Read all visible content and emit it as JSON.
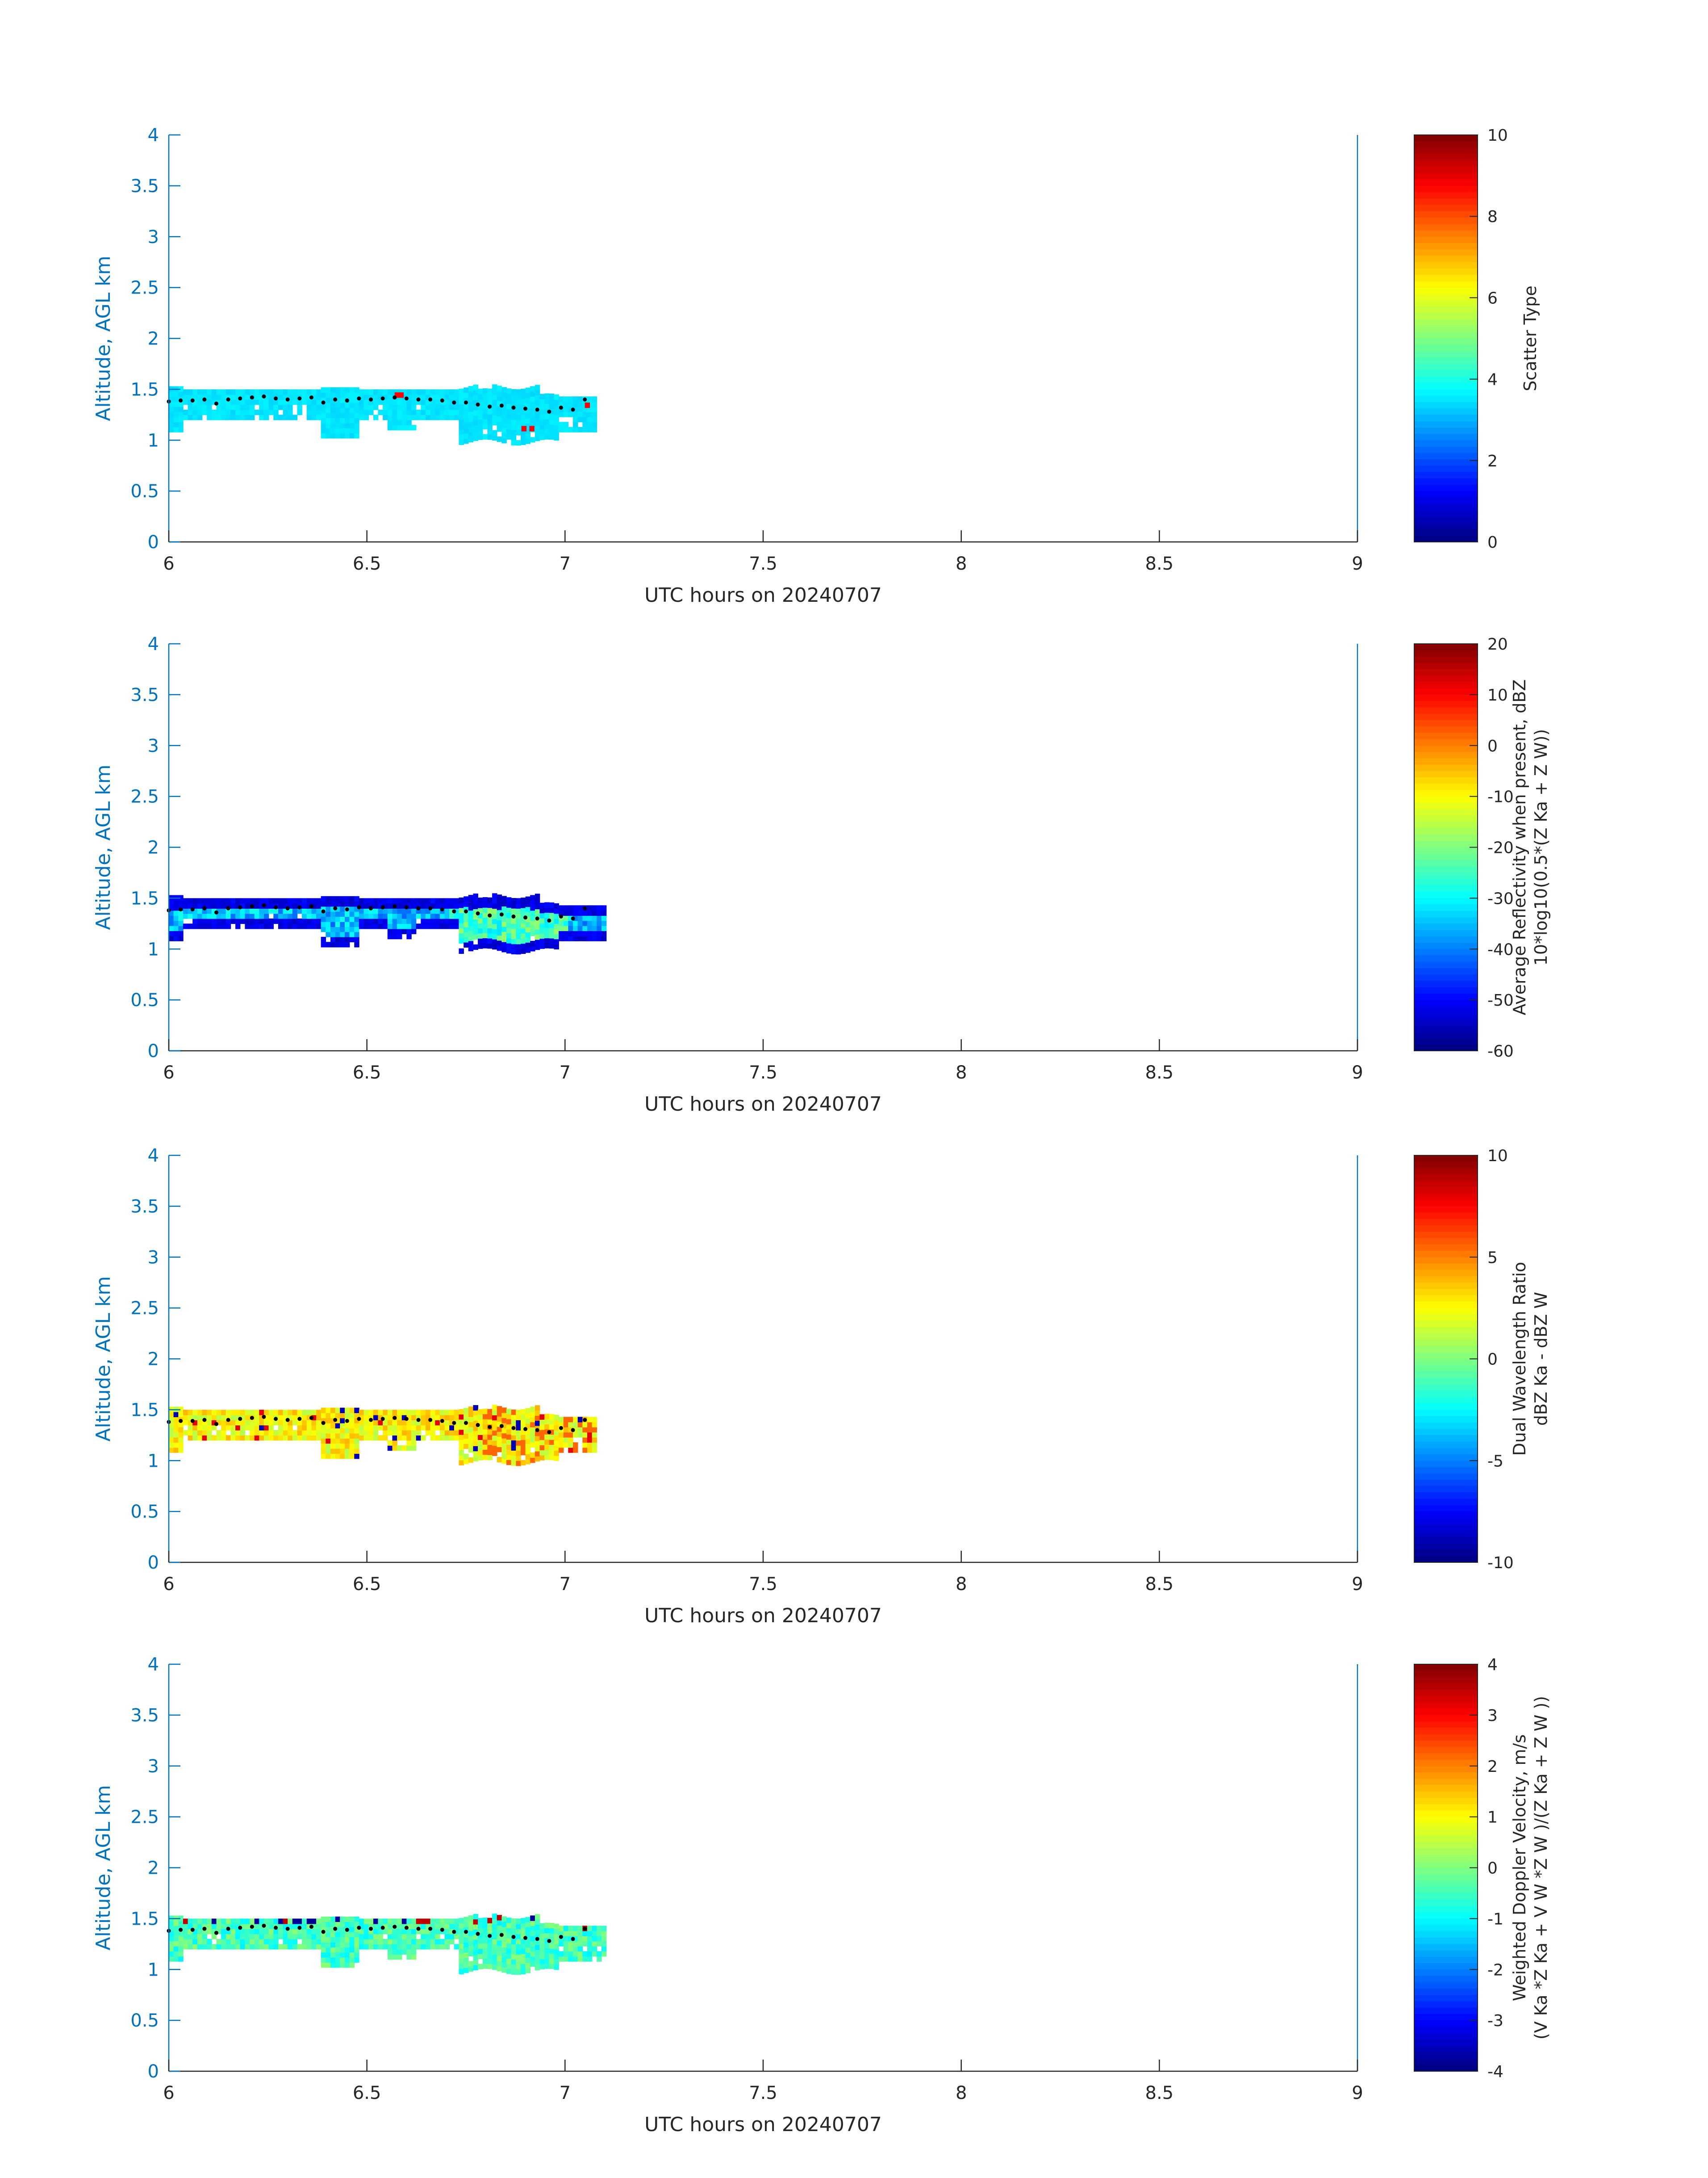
{
  "chart_data": [
    {
      "type": "heatmap",
      "xlabel": "UTC hours on 20240707",
      "ylabel": "Altitude, AGL km",
      "xlim": [
        6,
        9
      ],
      "ylim": [
        0,
        4
      ],
      "xticks": [
        6,
        6.5,
        7,
        7.5,
        8,
        8.5,
        9
      ],
      "xtick_labels": [
        "6",
        "6.5",
        "7",
        "7.5",
        "8",
        "8.5",
        "9"
      ],
      "yticks": [
        0,
        0.5,
        1,
        1.5,
        2,
        2.5,
        3,
        3.5,
        4
      ],
      "ytick_labels": [
        "0",
        "0.5",
        "1",
        "1.5",
        "2",
        "2.5",
        "3",
        "3.5",
        "4"
      ],
      "colorbar": {
        "label_lines": [
          "Scatter Type"
        ],
        "range": [
          0,
          10
        ],
        "ticks": [
          0,
          2,
          4,
          6,
          8,
          10
        ],
        "tick_labels": [
          "0",
          "2",
          "4",
          "6",
          "8",
          "10"
        ]
      },
      "time_extent": [
        6.0,
        7.07
      ],
      "typical_value": 3.5,
      "highlight_value": 8.8,
      "highlight_cells": [
        [
          6.57,
          1.42
        ],
        [
          6.58,
          1.42
        ],
        [
          6.89,
          1.09
        ],
        [
          6.91,
          1.09
        ],
        [
          7.05,
          1.32
        ]
      ]
    },
    {
      "type": "heatmap",
      "xlabel": "UTC hours on 20240707",
      "ylabel": "Altitude, AGL km",
      "xlim": [
        6,
        9
      ],
      "ylim": [
        0,
        4
      ],
      "xticks": [
        6,
        6.5,
        7,
        7.5,
        8,
        8.5,
        9
      ],
      "xtick_labels": [
        "6",
        "6.5",
        "7",
        "7.5",
        "8",
        "8.5",
        "9"
      ],
      "yticks": [
        0,
        0.5,
        1,
        1.5,
        2,
        2.5,
        3,
        3.5,
        4
      ],
      "ytick_labels": [
        "0",
        "0.5",
        "1",
        "1.5",
        "2",
        "2.5",
        "3",
        "3.5",
        "4"
      ],
      "colorbar": {
        "label_lines": [
          "Average Reflectivity when present, dBZ",
          "10*log10(0.5*(Z Ka + Z W))"
        ],
        "range": [
          -60,
          20
        ],
        "ticks": [
          -60,
          -50,
          -40,
          -30,
          -20,
          -10,
          0,
          10,
          20
        ],
        "tick_labels": [
          "-60",
          "-50",
          "-40",
          "-30",
          "-20",
          "-10",
          "0",
          "10",
          "20"
        ]
      },
      "time_extent": [
        6.0,
        7.1
      ],
      "typical_value": -35,
      "edge_value": -55
    },
    {
      "type": "heatmap",
      "xlabel": "UTC hours on 20240707",
      "ylabel": "Altitude, AGL km",
      "xlim": [
        6,
        9
      ],
      "ylim": [
        0,
        4
      ],
      "xticks": [
        6,
        6.5,
        7,
        7.5,
        8,
        8.5,
        9
      ],
      "xtick_labels": [
        "6",
        "6.5",
        "7",
        "7.5",
        "8",
        "8.5",
        "9"
      ],
      "yticks": [
        0,
        0.5,
        1,
        1.5,
        2,
        2.5,
        3,
        3.5,
        4
      ],
      "ytick_labels": [
        "0",
        "0.5",
        "1",
        "1.5",
        "2",
        "2.5",
        "3",
        "3.5",
        "4"
      ],
      "colorbar": {
        "label_lines": [
          "Dual Wavelength Ratio",
          "dBZ Ka - dBZ W"
        ],
        "range": [
          -10,
          10
        ],
        "ticks": [
          -10,
          -5,
          0,
          5,
          10
        ],
        "tick_labels": [
          "-10",
          "-5",
          "0",
          "5",
          "10"
        ]
      },
      "time_extent": [
        6.0,
        7.07
      ],
      "typical_value": 2.5
    },
    {
      "type": "heatmap",
      "xlabel": "UTC hours on 20240707",
      "ylabel": "Altitude, AGL km",
      "xlim": [
        6,
        9
      ],
      "ylim": [
        0,
        4
      ],
      "xticks": [
        6,
        6.5,
        7,
        7.5,
        8,
        8.5,
        9
      ],
      "xtick_labels": [
        "6",
        "6.5",
        "7",
        "7.5",
        "8",
        "8.5",
        "9"
      ],
      "yticks": [
        0,
        0.5,
        1,
        1.5,
        2,
        2.5,
        3,
        3.5,
        4
      ],
      "ytick_labels": [
        "0",
        "0.5",
        "1",
        "1.5",
        "2",
        "2.5",
        "3",
        "3.5",
        "4"
      ],
      "colorbar": {
        "label_lines": [
          "Weighted Doppler Velocity, m/s",
          "(V Ka *Z Ka + V W *Z W )/(Z Ka + Z W ))"
        ],
        "range": [
          -4,
          4
        ],
        "ticks": [
          -4,
          -3,
          -2,
          -1,
          0,
          1,
          2,
          3,
          4
        ],
        "tick_labels": [
          "-4",
          "-3",
          "-2",
          "-1",
          "0",
          "1",
          "2",
          "3",
          "4"
        ]
      },
      "time_extent": [
        6.0,
        7.1
      ],
      "typical_value": -0.5
    }
  ],
  "cloud_base_dots": {
    "x": [
      6.0,
      6.03,
      6.06,
      6.09,
      6.12,
      6.15,
      6.18,
      6.21,
      6.24,
      6.27,
      6.3,
      6.33,
      6.36,
      6.39,
      6.42,
      6.45,
      6.48,
      6.51,
      6.54,
      6.57,
      6.6,
      6.63,
      6.66,
      6.69,
      6.72,
      6.75,
      6.78,
      6.81,
      6.84,
      6.87,
      6.9,
      6.93,
      6.96,
      6.99,
      7.02,
      7.05
    ],
    "y": [
      1.38,
      1.39,
      1.39,
      1.4,
      1.36,
      1.4,
      1.41,
      1.42,
      1.43,
      1.41,
      1.4,
      1.41,
      1.42,
      1.37,
      1.4,
      1.39,
      1.41,
      1.4,
      1.41,
      1.42,
      1.41,
      1.4,
      1.4,
      1.39,
      1.37,
      1.37,
      1.35,
      1.33,
      1.34,
      1.32,
      1.31,
      1.3,
      1.28,
      1.32,
      1.3,
      1.4
    ]
  }
}
